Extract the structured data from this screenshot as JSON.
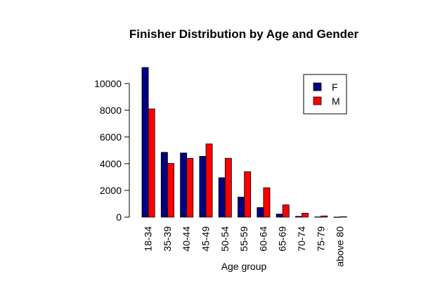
{
  "chart_data": {
    "type": "bar",
    "title": "Finisher Distribution by Age and Gender",
    "xlabel": "Age group",
    "ylabel": "",
    "categories": [
      "18-34",
      "35-39",
      "40-44",
      "45-49",
      "50-54",
      "55-59",
      "60-64",
      "65-69",
      "70-74",
      "75-79",
      "above 80"
    ],
    "series": [
      {
        "name": "F",
        "color": "#000080",
        "values": [
          11200,
          4850,
          4800,
          4550,
          2950,
          1500,
          720,
          230,
          60,
          20,
          8
        ]
      },
      {
        "name": "M",
        "color": "#ff0000",
        "values": [
          8100,
          4020,
          4400,
          5480,
          4400,
          3400,
          2200,
          920,
          290,
          90,
          30
        ]
      }
    ],
    "ylim": [
      0,
      11200
    ],
    "yticks": [
      0,
      2000,
      4000,
      6000,
      8000,
      10000
    ],
    "grid": false,
    "legend_position": "top-right"
  }
}
